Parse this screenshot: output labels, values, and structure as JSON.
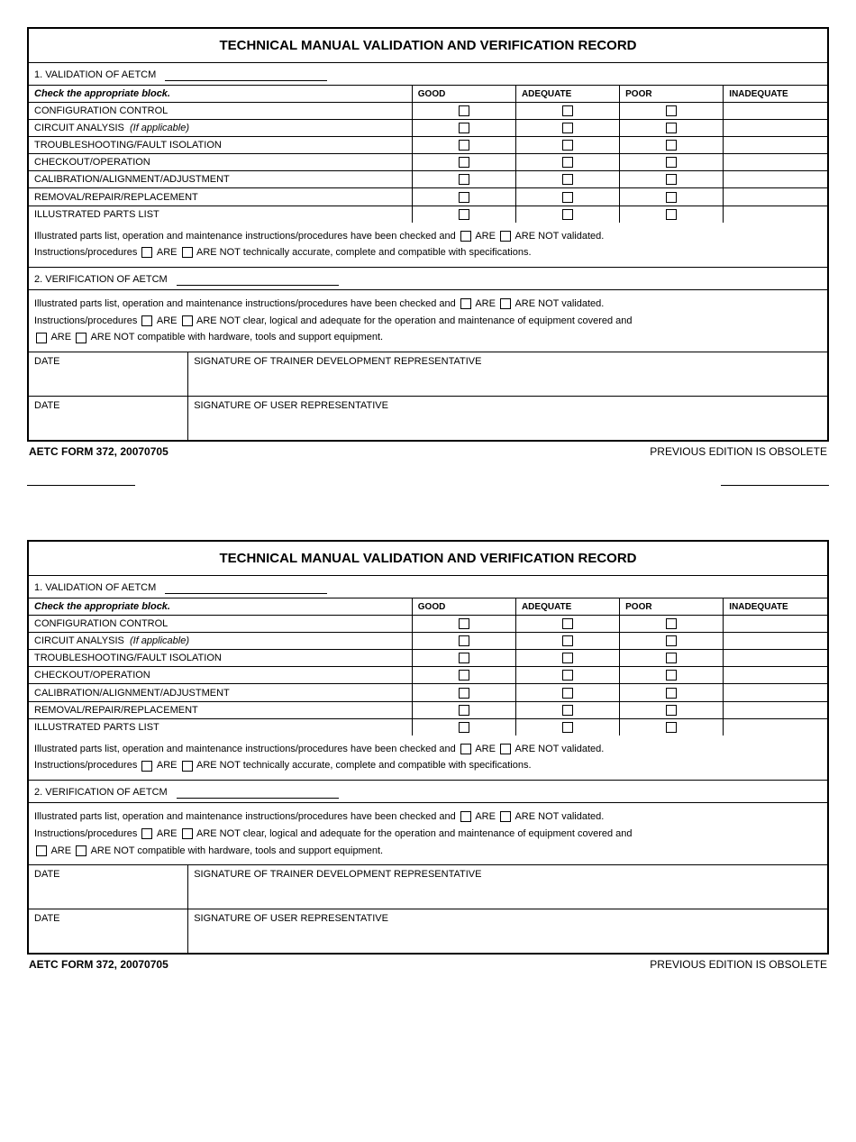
{
  "title": "TECHNICAL MANUAL VALIDATION AND VERIFICATION RECORD",
  "section1": {
    "heading": "1.  VALIDATION OF AETCM",
    "instruction": "Check the appropriate block.",
    "columns": [
      "GOOD",
      "ADEQUATE",
      "POOR",
      "INADEQUATE"
    ],
    "rows": [
      {
        "label": "CONFIGURATION CONTROL",
        "note": ""
      },
      {
        "label": "CIRCUIT ANALYSIS",
        "note": "(If applicable)"
      },
      {
        "label": "TROUBLESHOOTING/FAULT ISOLATION",
        "note": ""
      },
      {
        "label": "CHECKOUT/OPERATION",
        "note": ""
      },
      {
        "label": "CALIBRATION/ALIGNMENT/ADJUSTMENT",
        "note": ""
      },
      {
        "label": "REMOVAL/REPAIR/REPLACEMENT",
        "note": ""
      },
      {
        "label": "ILLUSTRATED PARTS LIST",
        "note": ""
      }
    ],
    "statement1_a": "Illustrated parts list, operation and maintenance instructions/procedures have been checked and",
    "are": "ARE",
    "arenot": "ARE NOT",
    "statement1_b": "validated.",
    "statement2_a": "Instructions/procedures",
    "statement2_b": "technically accurate, complete and compatible with specifications."
  },
  "section2": {
    "heading": "2.  VERIFICATION  OF AETCM",
    "statement1_a": "Illustrated parts list, operation and maintenance instructions/procedures have been checked and",
    "statement1_b": "validated.",
    "statement2_a": "Instructions/procedures",
    "statement2_b": "clear, logical and adequate for the operation and maintenance of equipment covered and",
    "statement3": "compatible with hardware, tools and support equipment."
  },
  "sig": {
    "date": "DATE",
    "trainer": "SIGNATURE OF TRAINER DEVELOPMENT REPRESENTATIVE",
    "user": "SIGNATURE OF USER REPRESENTATIVE"
  },
  "footer": {
    "left": "AETC FORM 372, 20070705",
    "right": "PREVIOUS EDITION IS OBSOLETE"
  }
}
